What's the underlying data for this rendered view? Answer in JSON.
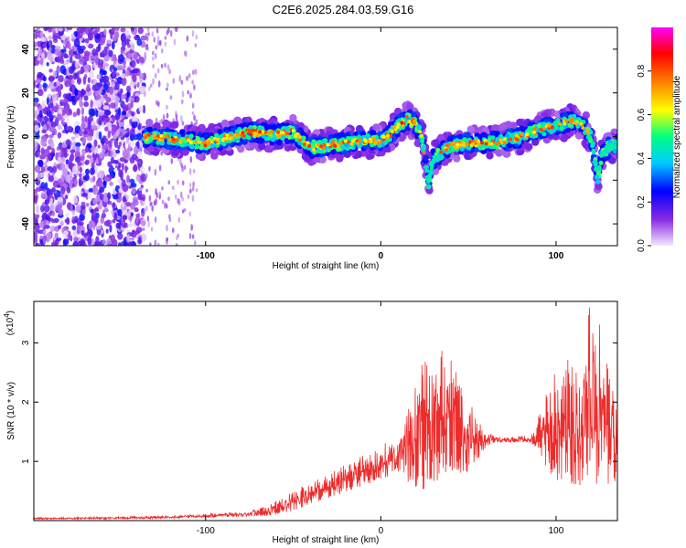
{
  "title": "C2E6.2025.284.03.59.G16",
  "chart_data": [
    {
      "type": "heatmap",
      "name": "spectrogram",
      "xlabel": "Height of straight line (km)",
      "ylabel": "Frequency (Hz)",
      "xlim": [
        -198,
        135
      ],
      "ylim": [
        -50,
        50
      ],
      "xticks": [
        -100,
        0,
        100
      ],
      "yticks": [
        -40,
        -20,
        0,
        20,
        40
      ],
      "colorbar": {
        "label": "Normalized spectral amplitude",
        "range": [
          0,
          1
        ],
        "ticks": [
          "0.0",
          "0.2",
          "0.4",
          "0.6",
          "0.8"
        ],
        "tick_values": [
          0,
          0.2,
          0.4,
          0.6,
          0.8
        ],
        "colors": [
          "#f4e8ff",
          "#8a2be2",
          "#0000ff",
          "#00ccff",
          "#00ff80",
          "#ffff00",
          "#ff8000",
          "#ff0000",
          "#ff00ff"
        ]
      },
      "ridge": {
        "x": [
          -135,
          -120,
          -100,
          -85,
          -75,
          -60,
          -50,
          -40,
          -30,
          -20,
          -10,
          0,
          5,
          10,
          15,
          20,
          24,
          27,
          30,
          40,
          50,
          60,
          70,
          80,
          90,
          100,
          110,
          115,
          120,
          124,
          126,
          130,
          135
        ],
        "y": [
          0,
          -1,
          -3,
          0,
          2,
          1,
          2,
          -5,
          -4,
          -3,
          -2,
          -2,
          1,
          5,
          8,
          6,
          -2,
          -22,
          -10,
          -4,
          -3,
          -3,
          -2,
          0,
          3,
          5,
          7,
          5,
          0,
          -20,
          -8,
          -5,
          -4
        ]
      },
      "noise_region": [
        -198,
        -135
      ]
    },
    {
      "type": "line",
      "name": "snr",
      "xlabel": "Height of straight line (km)",
      "ylabel": "SNR (10 * v/v)",
      "scale_label": "(x10",
      "scale_exp": "4",
      "scale_close": ")",
      "xlim": [
        -198,
        135
      ],
      "ylim": [
        0,
        3.7
      ],
      "xticks": [
        -100,
        0,
        100
      ],
      "yticks": [
        1,
        2,
        3
      ],
      "color": "#ee2c2c",
      "envelope": {
        "x": [
          -198,
          -160,
          -120,
          -80,
          -65,
          -50,
          -40,
          -30,
          -20,
          -10,
          0,
          10,
          20,
          25,
          30,
          35,
          40,
          45,
          50,
          55,
          60,
          65,
          70,
          80,
          85,
          90,
          95,
          100,
          105,
          110,
          115,
          120,
          125,
          130,
          135
        ],
        "lo": [
          0.02,
          0.02,
          0.03,
          0.05,
          0.05,
          0.1,
          0.2,
          0.3,
          0.4,
          0.5,
          0.6,
          0.7,
          0.2,
          0.1,
          0.2,
          0.4,
          0.5,
          0.3,
          0.6,
          0.9,
          1.2,
          1.3,
          1.3,
          1.3,
          1.3,
          1.1,
          0.6,
          0.3,
          0.3,
          0.2,
          0.1,
          0.1,
          0.1,
          0.2,
          0.4
        ],
        "hi": [
          0.05,
          0.06,
          0.08,
          0.15,
          0.25,
          0.5,
          0.65,
          0.8,
          0.95,
          1.1,
          1.25,
          1.5,
          2.3,
          2.9,
          2.6,
          3.0,
          2.8,
          2.4,
          2.1,
          1.7,
          1.5,
          1.45,
          1.4,
          1.45,
          1.4,
          1.8,
          2.3,
          2.6,
          2.9,
          2.6,
          3.5,
          3.7,
          3.3,
          2.5,
          2.2
        ]
      }
    }
  ]
}
